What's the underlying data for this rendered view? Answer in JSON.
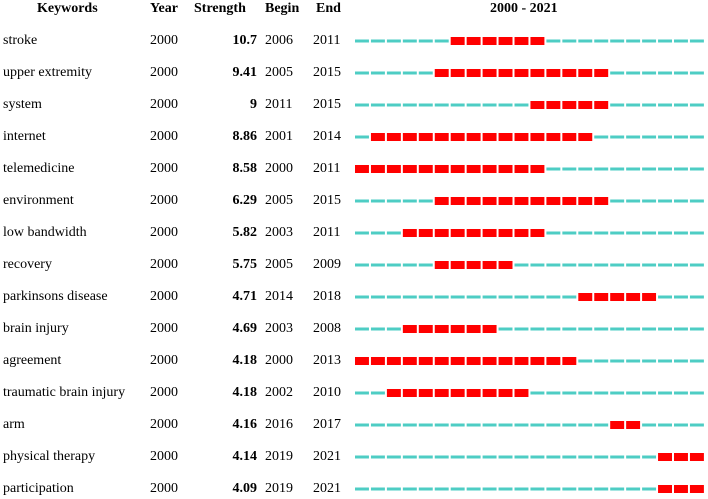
{
  "chart_data": {
    "type": "table",
    "headers": {
      "keyword": "Keywords",
      "year": "Year",
      "strength": "Strength",
      "begin": "Begin",
      "end": "End",
      "range": "2000 - 2021"
    },
    "range_start": 2000,
    "range_end": 2021,
    "colors": {
      "burst": "#ff0000",
      "base": "#4ecdc4"
    },
    "rows": [
      {
        "keyword": "stroke",
        "year": "2000",
        "strength": "10.7",
        "begin": "2006",
        "end": "2011"
      },
      {
        "keyword": "upper extremity",
        "year": "2000",
        "strength": "9.41",
        "begin": "2005",
        "end": "2015"
      },
      {
        "keyword": "system",
        "year": "2000",
        "strength": "9",
        "begin": "2011",
        "end": "2015"
      },
      {
        "keyword": "internet",
        "year": "2000",
        "strength": "8.86",
        "begin": "2001",
        "end": "2014"
      },
      {
        "keyword": "telemedicine",
        "year": "2000",
        "strength": "8.58",
        "begin": "2000",
        "end": "2011"
      },
      {
        "keyword": "environment",
        "year": "2000",
        "strength": "6.29",
        "begin": "2005",
        "end": "2015"
      },
      {
        "keyword": "low bandwidth",
        "year": "2000",
        "strength": "5.82",
        "begin": "2003",
        "end": "2011"
      },
      {
        "keyword": "recovery",
        "year": "2000",
        "strength": "5.75",
        "begin": "2005",
        "end": "2009"
      },
      {
        "keyword": "parkinsons disease",
        "year": "2000",
        "strength": "4.71",
        "begin": "2014",
        "end": "2018"
      },
      {
        "keyword": "brain injury",
        "year": "2000",
        "strength": "4.69",
        "begin": "2003",
        "end": "2008"
      },
      {
        "keyword": "agreement",
        "year": "2000",
        "strength": "4.18",
        "begin": "2000",
        "end": "2013"
      },
      {
        "keyword": "traumatic brain injury",
        "year": "2000",
        "strength": "4.18",
        "begin": "2002",
        "end": "2010"
      },
      {
        "keyword": "arm",
        "year": "2000",
        "strength": "4.16",
        "begin": "2016",
        "end": "2017"
      },
      {
        "keyword": "physical therapy",
        "year": "2000",
        "strength": "4.14",
        "begin": "2019",
        "end": "2021"
      },
      {
        "keyword": "participation",
        "year": "2000",
        "strength": "4.09",
        "begin": "2019",
        "end": "2021"
      }
    ]
  }
}
